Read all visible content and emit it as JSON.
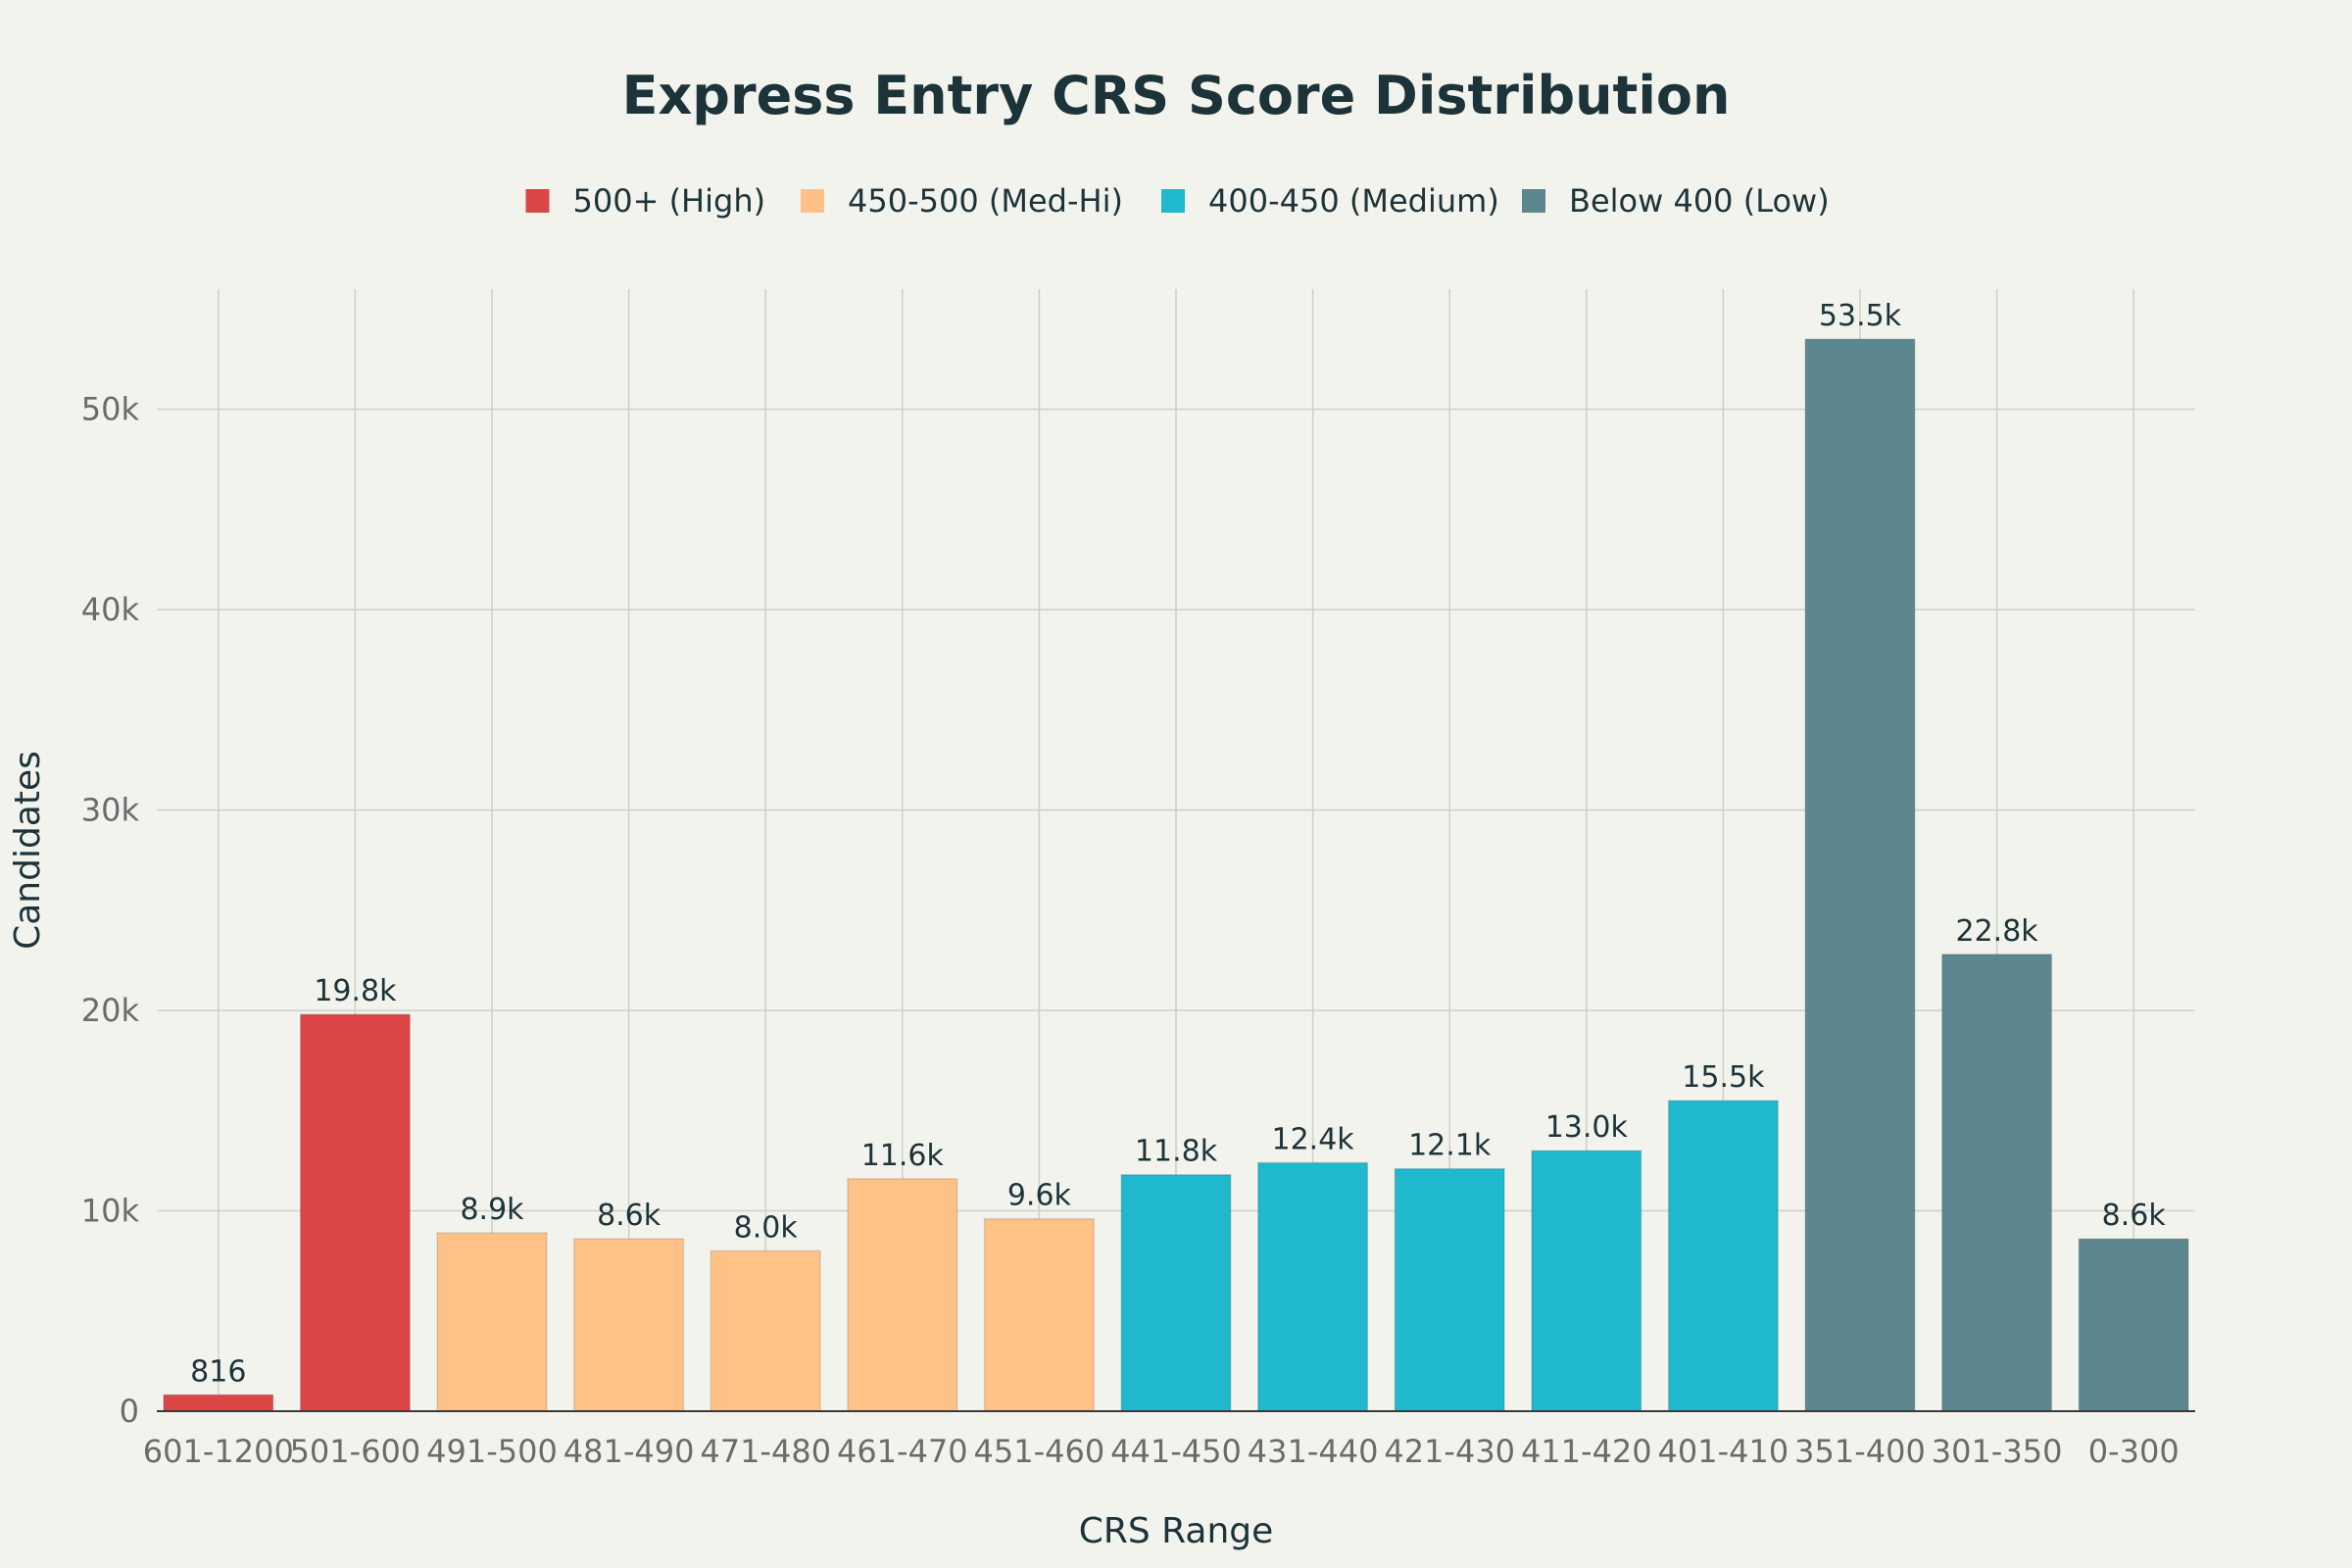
{
  "chart_data": {
    "type": "bar",
    "title": "Express Entry CRS Score Distribution",
    "xlabel": "CRS Range",
    "ylabel": "Candidates",
    "ylim": [
      0,
      56000
    ],
    "yticks": [
      0,
      10000,
      20000,
      30000,
      40000,
      50000
    ],
    "ytick_labels": [
      "0",
      "10k",
      "20k",
      "30k",
      "40k",
      "50k"
    ],
    "grid": true,
    "legend_position": "top",
    "groups": [
      {
        "name": "500+ (High)",
        "color": "#db4545"
      },
      {
        "name": "450-500 (Med-Hi)",
        "color": "#ffc185"
      },
      {
        "name": "400-450 (Medium)",
        "color": "#1fb8cd"
      },
      {
        "name": "Below 400 (Low)",
        "color": "#5d878f"
      }
    ],
    "bars": [
      {
        "category": "601-1200",
        "value": 816,
        "label": "816",
        "group": 0
      },
      {
        "category": "501-600",
        "value": 19800,
        "label": "19.8k",
        "group": 0
      },
      {
        "category": "491-500",
        "value": 8900,
        "label": "8.9k",
        "group": 1
      },
      {
        "category": "481-490",
        "value": 8600,
        "label": "8.6k",
        "group": 1
      },
      {
        "category": "471-480",
        "value": 8000,
        "label": "8.0k",
        "group": 1
      },
      {
        "category": "461-470",
        "value": 11600,
        "label": "11.6k",
        "group": 1
      },
      {
        "category": "451-460",
        "value": 9600,
        "label": "9.6k",
        "group": 1
      },
      {
        "category": "441-450",
        "value": 11800,
        "label": "11.8k",
        "group": 2
      },
      {
        "category": "431-440",
        "value": 12400,
        "label": "12.4k",
        "group": 2
      },
      {
        "category": "421-430",
        "value": 12100,
        "label": "12.1k",
        "group": 2
      },
      {
        "category": "411-420",
        "value": 13000,
        "label": "13.0k",
        "group": 2
      },
      {
        "category": "401-410",
        "value": 15500,
        "label": "15.5k",
        "group": 2
      },
      {
        "category": "351-400",
        "value": 53500,
        "label": "53.5k",
        "group": 3
      },
      {
        "category": "301-350",
        "value": 22800,
        "label": "22.8k",
        "group": 3
      },
      {
        "category": "0-300",
        "value": 8600,
        "label": "8.6k",
        "group": 3
      }
    ]
  }
}
